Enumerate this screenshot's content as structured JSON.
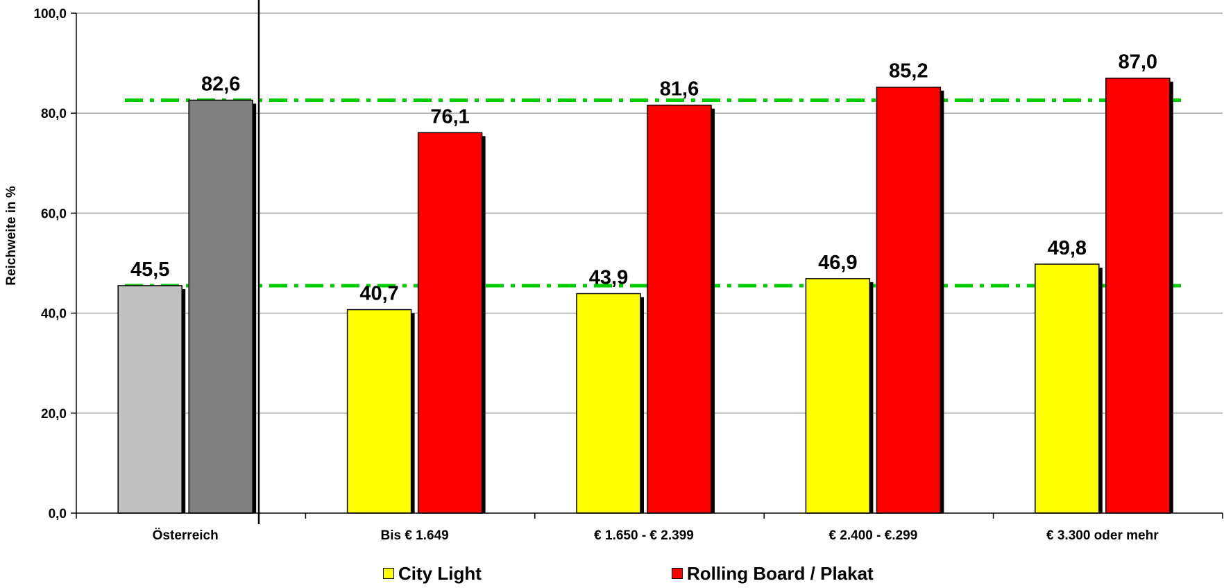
{
  "chart_data": {
    "type": "bar",
    "title": "",
    "xlabel": "",
    "ylabel": "Reichweite in %",
    "ylim": [
      0,
      100
    ],
    "yticks": [
      "0,0",
      "20,0",
      "40,0",
      "60,0",
      "80,0",
      "100,0"
    ],
    "ytick_values": [
      0,
      20,
      40,
      60,
      80,
      100
    ],
    "grid": true,
    "categories": [
      "Österreich",
      "Bis € 1.649",
      "€ 1.650 - € 2.399",
      "€ 2.400 - €.299",
      "€ 3.300 oder mehr"
    ],
    "series": [
      {
        "name": "City Light",
        "values": [
          45.5,
          40.7,
          43.9,
          46.9,
          49.8
        ],
        "labels": [
          "45,5",
          "40,7",
          "43,9",
          "46,9",
          "49,8"
        ],
        "color": "#ffff00",
        "first_bar_color": "#c0c0c0"
      },
      {
        "name": "Rolling Board / Plakat",
        "values": [
          82.6,
          76.1,
          81.6,
          85.2,
          87.0
        ],
        "labels": [
          "82,6",
          "76,1",
          "81,6",
          "85,2",
          "87,0"
        ],
        "color": "#ff0000",
        "first_bar_color": "#808080"
      }
    ],
    "reference_lines": [
      {
        "value": 45.5,
        "color": "#00cc00",
        "style": "dash-dot"
      },
      {
        "value": 82.6,
        "color": "#00cc00",
        "style": "dash-dot"
      }
    ],
    "legend_position": "bottom"
  }
}
